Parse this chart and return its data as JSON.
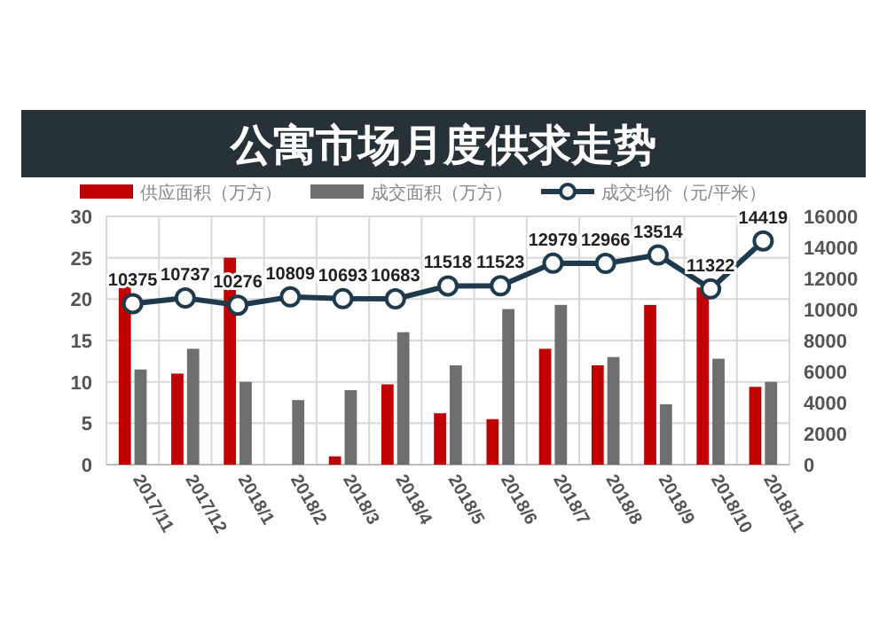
{
  "chart_data": {
    "type": "bar",
    "title": "公寓市场月度供求走势",
    "categories": [
      "2017/11",
      "2017/12",
      "2018/1",
      "2018/2",
      "2018/3",
      "2018/4",
      "2018/5",
      "2018/6",
      "2018/7",
      "2018/8",
      "2018/9",
      "2018/10",
      "2018/11"
    ],
    "series": [
      {
        "name": "供应面积（万方）",
        "color": "#c00000",
        "values": [
          22,
          11,
          25,
          0,
          1,
          9.7,
          6.2,
          5.5,
          14,
          12,
          19.3,
          21.4,
          9.4
        ]
      },
      {
        "name": "成交面积（万方）",
        "color": "#6e6e6e",
        "values": [
          11.5,
          14,
          10,
          7.8,
          9,
          16,
          12,
          18.8,
          19.3,
          13,
          7.3,
          12.8,
          10
        ]
      },
      {
        "name": "成交均价（元/平米）",
        "type": "line",
        "axis": "y2",
        "color": "#1f3a4d",
        "marker": "circle",
        "values": [
          10375,
          10737,
          10276,
          10809,
          10693,
          10683,
          11518,
          11523,
          12979,
          12966,
          13514,
          11322,
          14419
        ],
        "value_labels": [
          "10375",
          "10737",
          "10276",
          "10809",
          "10693",
          "10683",
          "11518",
          "11523",
          "12979",
          "12966",
          "13514",
          "11322",
          "14419"
        ]
      }
    ],
    "ylim": [
      0,
      30
    ],
    "yticks": [
      0,
      5,
      10,
      15,
      20,
      25,
      30
    ],
    "y2lim": [
      0,
      16000
    ],
    "y2ticks": [
      0,
      2000,
      4000,
      6000,
      8000,
      10000,
      12000,
      14000,
      16000
    ],
    "grid": true,
    "legend": "top"
  }
}
